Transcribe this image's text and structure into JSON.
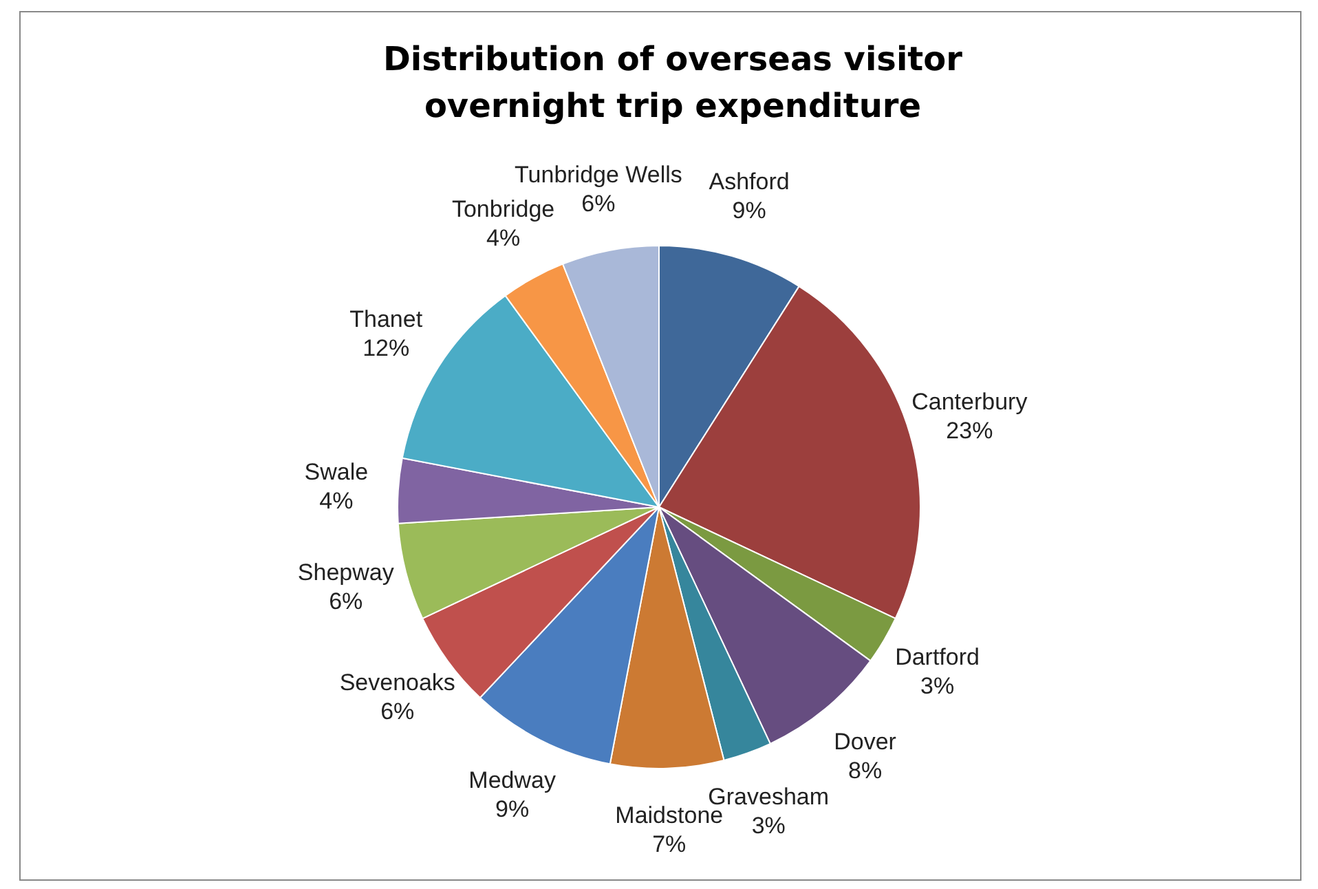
{
  "chart_data": {
    "type": "pie",
    "title": "Distribution of overseas visitor overnight trip expenditure",
    "categories": [
      "Ashford",
      "Canterbury",
      "Dartford",
      "Dover",
      "Gravesham",
      "Maidstone",
      "Medway",
      "Sevenoaks",
      "Shepway",
      "Swale",
      "Thanet",
      "Tonbridge",
      "Tunbridge Wells"
    ],
    "values": [
      9,
      23,
      3,
      8,
      3,
      7,
      9,
      6,
      6,
      4,
      12,
      4,
      6
    ],
    "value_labels": [
      "9%",
      "23%",
      "3%",
      "8%",
      "3%",
      "7%",
      "9%",
      "6%",
      "6%",
      "4%",
      "12%",
      "4%",
      "6%"
    ],
    "colors": [
      "#3f6899",
      "#9c3f3d",
      "#7b9a41",
      "#664d80",
      "#36869c",
      "#cc7a33",
      "#4a7dbf",
      "#c0504d",
      "#9bbb59",
      "#8064a2",
      "#4bacc6",
      "#f79646",
      "#a9b8d8"
    ],
    "legend": false
  }
}
